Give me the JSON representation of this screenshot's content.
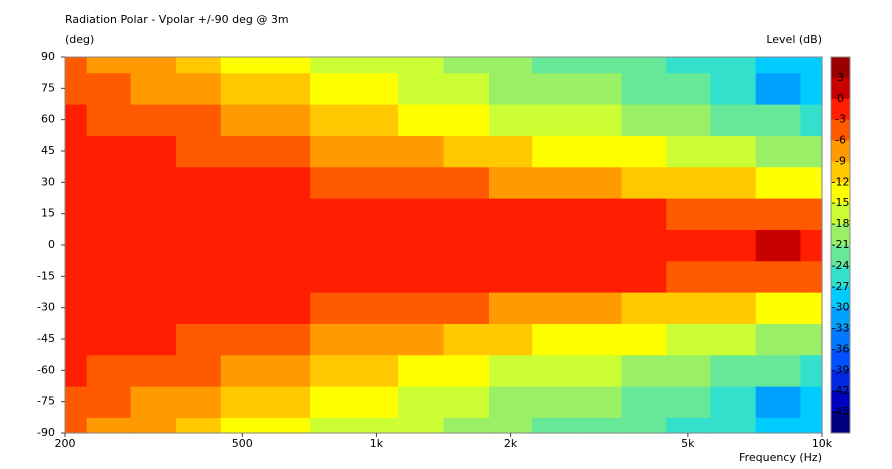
{
  "chart_data": {
    "type": "contour",
    "title": "Radiation Polar - Vpolar +/-90 deg @ 3m",
    "y_label": "(deg)",
    "x_label": "Frequency  (Hz)",
    "colorbar_label": "Level  (dB)",
    "log_x": true,
    "x": [
      200,
      250,
      315,
      400,
      500,
      630,
      800,
      1000,
      1250,
      1600,
      2000,
      2500,
      3150,
      4000,
      5000,
      6300,
      8000,
      10000
    ],
    "y": [
      -90,
      -75,
      -60,
      -45,
      -30,
      -15,
      0,
      15,
      30,
      45,
      60,
      75,
      90
    ],
    "z": [
      [
        -5,
        -6.5,
        -8,
        -10,
        -12.5,
        -14,
        -15,
        -16,
        -17.5,
        -19,
        -20,
        -21,
        -22,
        -23.5,
        -25,
        -26,
        -27,
        -27
      ],
      [
        -3.5,
        -4.5,
        -6,
        -7.5,
        -9.5,
        -11,
        -13,
        -14,
        -15,
        -17,
        -18.5,
        -19,
        -20,
        -21.5,
        -23,
        -25,
        -31,
        -28
      ],
      [
        -2.5,
        -3,
        -4,
        -5.5,
        -7,
        -8,
        -9.5,
        -10.5,
        -12,
        -13.5,
        -15,
        -16,
        -17,
        -18,
        -19,
        -21,
        -23,
        -25
      ],
      [
        -1.5,
        -2,
        -2.5,
        -3,
        -4,
        -5,
        -6,
        -7,
        -8.5,
        -10,
        -11,
        -12,
        -13,
        -14,
        -15,
        -16.5,
        -18,
        -20
      ],
      [
        -1,
        -1.2,
        -1.5,
        -1.8,
        -2,
        -2.5,
        -3,
        -3.5,
        -4,
        -5,
        -6,
        -6.5,
        -7.5,
        -9,
        -10,
        -11,
        -12,
        -14
      ],
      [
        -1,
        -1,
        -1,
        -1.2,
        -1.5,
        -1.5,
        -1.5,
        -1.5,
        -1.8,
        -2,
        -2,
        -2.2,
        -2.5,
        -2.8,
        -3,
        -3.2,
        -3.5,
        -4
      ],
      [
        -1,
        -1,
        -1,
        -1,
        -1,
        -1,
        -1,
        -1,
        -1,
        -1,
        -1,
        -1,
        -1,
        -1,
        -1,
        -1,
        1,
        -1
      ],
      [
        -1,
        -1,
        -1,
        -1.2,
        -1.5,
        -1.5,
        -1.5,
        -1.5,
        -1.8,
        -2,
        -2,
        -2.2,
        -2.5,
        -2.8,
        -3,
        -3.2,
        -3.5,
        -4
      ],
      [
        -1,
        -1.2,
        -1.5,
        -1.8,
        -2,
        -2.5,
        -3,
        -3.5,
        -4,
        -5,
        -6,
        -6.5,
        -7.5,
        -9,
        -10,
        -11,
        -12,
        -14
      ],
      [
        -1.5,
        -2,
        -2.5,
        -3,
        -4,
        -5,
        -6,
        -7,
        -8.5,
        -10,
        -11,
        -12,
        -13,
        -14,
        -15,
        -16.5,
        -18,
        -20
      ],
      [
        -2.5,
        -3,
        -4,
        -5.5,
        -7,
        -8,
        -9.5,
        -10.5,
        -12,
        -13.5,
        -15,
        -16,
        -17,
        -18,
        -19,
        -21,
        -23,
        -25
      ],
      [
        -3.5,
        -4.5,
        -6,
        -7.5,
        -9.5,
        -11,
        -13,
        -14,
        -15,
        -17,
        -18.5,
        -19,
        -20,
        -21.5,
        -23,
        -25,
        -31,
        -28
      ],
      [
        -5,
        -6.5,
        -8,
        -10,
        -12.5,
        -14,
        -15,
        -16,
        -17.5,
        -19,
        -20,
        -21,
        -22,
        -23.5,
        -25,
        -26,
        -27,
        -27
      ]
    ],
    "xlim": [
      200,
      10000
    ],
    "ylim": [
      -90,
      90
    ],
    "xticks": [
      200,
      500,
      {
        "value": 1000,
        "label": "1k"
      },
      {
        "value": 2000,
        "label": "2k"
      },
      {
        "value": 5000,
        "label": "5k"
      },
      {
        "value": 10000,
        "label": "10k"
      }
    ],
    "yticks": [
      90,
      75,
      60,
      45,
      30,
      15,
      0,
      -15,
      -30,
      -45,
      -60,
      -75,
      -90
    ],
    "levels": [
      6,
      3,
      0,
      -3,
      -6,
      -9,
      -12,
      -15,
      -18,
      -21,
      -24,
      -27,
      -30,
      -33,
      -36,
      -39,
      -42,
      -45,
      -48
    ],
    "colors": [
      "#9b0000",
      "#c80000",
      "#ff1e00",
      "#ff5a00",
      "#ff9a00",
      "#ffc800",
      "#ffff00",
      "#ccff33",
      "#99f066",
      "#66e899",
      "#33e0cc",
      "#00ccff",
      "#00a0ff",
      "#0078ff",
      "#0050ff",
      "#0028e0",
      "#0000c0",
      "#000080"
    ]
  }
}
